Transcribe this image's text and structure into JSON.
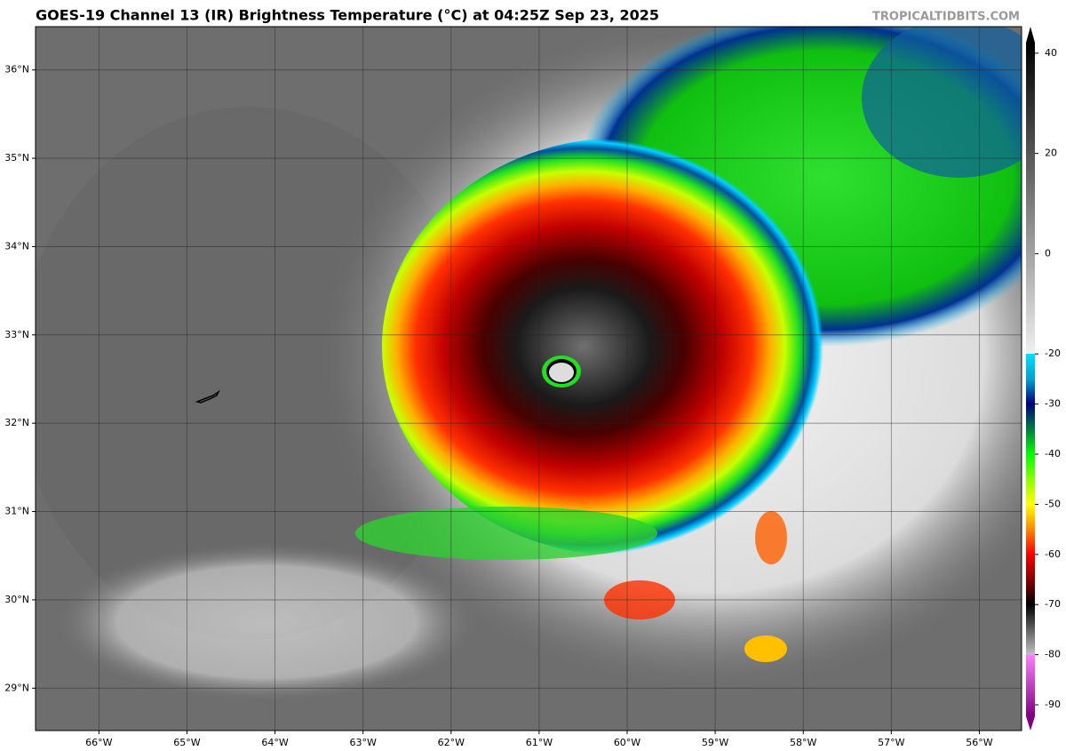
{
  "header": {
    "title": "GOES-19 Channel 13 (IR) Brightness Temperature (°C) at 04:25Z Sep 23, 2025",
    "credit": "TROPICALTIDBITS.COM"
  },
  "map": {
    "lonlim": [
      -66.72,
      -55.52
    ],
    "latlim": [
      28.52,
      36.49
    ],
    "lon_ticks": [
      {
        "value": -66,
        "label": "66°W"
      },
      {
        "value": -65,
        "label": "65°W"
      },
      {
        "value": -64,
        "label": "64°W"
      },
      {
        "value": -63,
        "label": "63°W"
      },
      {
        "value": -62,
        "label": "62°W"
      },
      {
        "value": -61,
        "label": "61°W"
      },
      {
        "value": -60,
        "label": "60°W"
      },
      {
        "value": -59,
        "label": "59°W"
      },
      {
        "value": -58,
        "label": "58°W"
      },
      {
        "value": -57,
        "label": "57°W"
      },
      {
        "value": -56,
        "label": "56°W"
      }
    ],
    "lat_ticks": [
      {
        "value": 29,
        "label": "29°N"
      },
      {
        "value": 30,
        "label": "30°N"
      },
      {
        "value": 31,
        "label": "31°N"
      },
      {
        "value": 32,
        "label": "32°N"
      },
      {
        "value": 33,
        "label": "33°N"
      },
      {
        "value": 34,
        "label": "34°N"
      },
      {
        "value": 35,
        "label": "35°N"
      },
      {
        "value": 36,
        "label": "36°N"
      }
    ]
  },
  "colorbar": {
    "lim": [
      -92.3,
      42.1
    ],
    "ticks": [
      40,
      20,
      0,
      -20,
      -30,
      -40,
      -50,
      -60,
      -70,
      -80,
      -90
    ]
  }
}
